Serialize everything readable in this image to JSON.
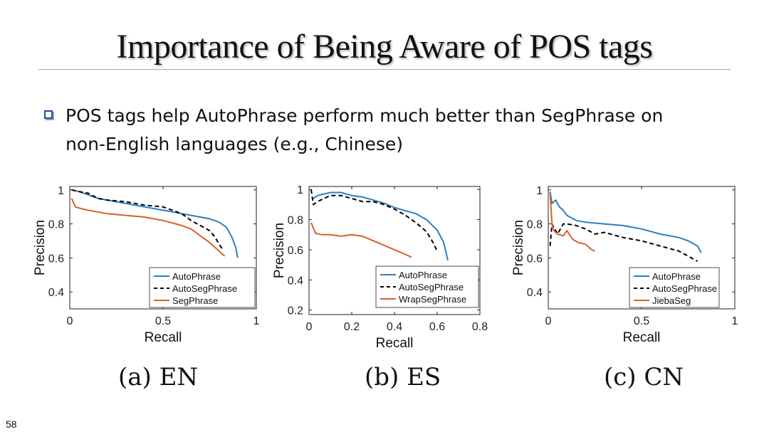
{
  "slide": {
    "title": "Importance of Being Aware of POS tags",
    "bullet_line1": "POS tags help AutoPhrase perform much better than SegPhrase on",
    "bullet_line2": "non-English languages (e.g., Chinese)",
    "page_number": "58"
  },
  "chart_data": [
    {
      "type": "line",
      "caption": "(a) EN",
      "xlabel": "Recall",
      "ylabel": "Precision",
      "xlim": [
        0,
        1
      ],
      "ylim": [
        0.3,
        1.02
      ],
      "xticks": [
        0,
        0.5,
        1
      ],
      "xtick_labels": [
        "0",
        "0.5",
        "1"
      ],
      "yticks": [
        0.4,
        0.6,
        0.8,
        1
      ],
      "ytick_labels": [
        "0.4",
        "0.6",
        "0.8",
        "1"
      ],
      "legend_position": "bottom-right",
      "series": [
        {
          "name": "AutoPhrase",
          "color": "#2e7ebf",
          "dash": "solid",
          "x": [
            0.01,
            0.05,
            0.1,
            0.15,
            0.2,
            0.3,
            0.4,
            0.5,
            0.6,
            0.7,
            0.75,
            0.8,
            0.84,
            0.87,
            0.89,
            0.9
          ],
          "y": [
            1.0,
            0.99,
            0.97,
            0.95,
            0.94,
            0.92,
            0.9,
            0.88,
            0.86,
            0.84,
            0.83,
            0.81,
            0.78,
            0.72,
            0.66,
            0.6
          ]
        },
        {
          "name": "AutoSegPhrase",
          "color": "#000000",
          "dash": "dashed",
          "x": [
            0.01,
            0.05,
            0.1,
            0.15,
            0.2,
            0.3,
            0.4,
            0.5,
            0.55,
            0.6,
            0.65,
            0.7,
            0.75,
            0.78,
            0.8,
            0.82
          ],
          "y": [
            1.0,
            0.99,
            0.98,
            0.95,
            0.94,
            0.93,
            0.91,
            0.9,
            0.88,
            0.86,
            0.82,
            0.79,
            0.76,
            0.72,
            0.68,
            0.65
          ]
        },
        {
          "name": "SegPhrase",
          "color": "#d95f2b",
          "dash": "solid",
          "x": [
            0.01,
            0.03,
            0.06,
            0.1,
            0.15,
            0.2,
            0.3,
            0.4,
            0.5,
            0.6,
            0.65,
            0.7,
            0.75,
            0.8,
            0.83
          ],
          "y": [
            0.95,
            0.9,
            0.89,
            0.88,
            0.87,
            0.86,
            0.85,
            0.84,
            0.82,
            0.79,
            0.77,
            0.73,
            0.69,
            0.64,
            0.61
          ]
        }
      ]
    },
    {
      "type": "line",
      "caption": "(b) ES",
      "xlabel": "Recall",
      "ylabel": "Precision",
      "xlim": [
        0,
        0.8
      ],
      "ylim": [
        0.17,
        1.02
      ],
      "xticks": [
        0,
        0.2,
        0.4,
        0.6,
        0.8
      ],
      "xtick_labels": [
        "0",
        "0.2",
        "0.4",
        "0.6",
        "0.8"
      ],
      "yticks": [
        0.2,
        0.4,
        0.6,
        0.8,
        1
      ],
      "ytick_labels": [
        "0.2",
        "0.4",
        "0.6",
        "0.8",
        "1"
      ],
      "legend_position": "bottom-right",
      "series": [
        {
          "name": "AutoPhrase",
          "color": "#2e7ebf",
          "dash": "solid",
          "x": [
            0.02,
            0.04,
            0.07,
            0.1,
            0.15,
            0.2,
            0.25,
            0.3,
            0.35,
            0.4,
            0.45,
            0.5,
            0.55,
            0.6,
            0.63,
            0.65
          ],
          "y": [
            0.94,
            0.96,
            0.97,
            0.98,
            0.98,
            0.96,
            0.95,
            0.93,
            0.91,
            0.88,
            0.86,
            0.84,
            0.8,
            0.73,
            0.65,
            0.53
          ]
        },
        {
          "name": "AutoSegPhrase",
          "color": "#000000",
          "dash": "dashed",
          "x": [
            0.01,
            0.02,
            0.04,
            0.07,
            0.1,
            0.15,
            0.2,
            0.25,
            0.3,
            0.35,
            0.4,
            0.45,
            0.5,
            0.55,
            0.58,
            0.6
          ],
          "y": [
            1.0,
            0.9,
            0.92,
            0.94,
            0.96,
            0.96,
            0.94,
            0.92,
            0.92,
            0.9,
            0.87,
            0.83,
            0.78,
            0.72,
            0.65,
            0.59
          ]
        },
        {
          "name": "WrapSegPhrase",
          "color": "#d95f2b",
          "dash": "solid",
          "x": [
            0.01,
            0.03,
            0.06,
            0.1,
            0.15,
            0.2,
            0.25,
            0.3,
            0.35,
            0.4,
            0.45,
            0.48
          ],
          "y": [
            0.78,
            0.71,
            0.7,
            0.7,
            0.69,
            0.7,
            0.69,
            0.66,
            0.63,
            0.6,
            0.57,
            0.55
          ]
        }
      ]
    },
    {
      "type": "line",
      "caption": "(c) CN",
      "xlabel": "Recall",
      "ylabel": "Precision",
      "xlim": [
        0,
        1
      ],
      "ylim": [
        0.3,
        1.02
      ],
      "xticks": [
        0,
        0.5,
        1
      ],
      "xtick_labels": [
        "0",
        "0.5",
        "1"
      ],
      "yticks": [
        0.4,
        0.6,
        0.8,
        1
      ],
      "ytick_labels": [
        "0.4",
        "0.6",
        "0.8",
        "1"
      ],
      "legend_position": "bottom-right",
      "series": [
        {
          "name": "AutoPhrase",
          "color": "#2e7ebf",
          "dash": "solid",
          "x": [
            0.01,
            0.02,
            0.04,
            0.06,
            0.08,
            0.1,
            0.15,
            0.2,
            0.3,
            0.4,
            0.5,
            0.6,
            0.7,
            0.75,
            0.8,
            0.82
          ],
          "y": [
            0.99,
            0.92,
            0.94,
            0.9,
            0.88,
            0.85,
            0.82,
            0.81,
            0.8,
            0.79,
            0.77,
            0.74,
            0.72,
            0.7,
            0.67,
            0.63
          ]
        },
        {
          "name": "AutoSegPhrase",
          "color": "#000000",
          "dash": "dashed",
          "x": [
            0.01,
            0.02,
            0.03,
            0.05,
            0.08,
            0.1,
            0.15,
            0.2,
            0.25,
            0.3,
            0.4,
            0.5,
            0.6,
            0.7,
            0.75,
            0.8
          ],
          "y": [
            0.67,
            0.8,
            0.78,
            0.74,
            0.8,
            0.8,
            0.79,
            0.77,
            0.74,
            0.75,
            0.72,
            0.7,
            0.67,
            0.64,
            0.61,
            0.58
          ]
        },
        {
          "name": "JiebaSeg",
          "color": "#d95f2b",
          "dash": "solid",
          "x": [
            0.01,
            0.02,
            0.03,
            0.05,
            0.08,
            0.1,
            0.13,
            0.16,
            0.2,
            0.23,
            0.25
          ],
          "y": [
            0.98,
            0.8,
            0.76,
            0.74,
            0.73,
            0.76,
            0.71,
            0.69,
            0.68,
            0.65,
            0.64
          ]
        }
      ]
    }
  ]
}
